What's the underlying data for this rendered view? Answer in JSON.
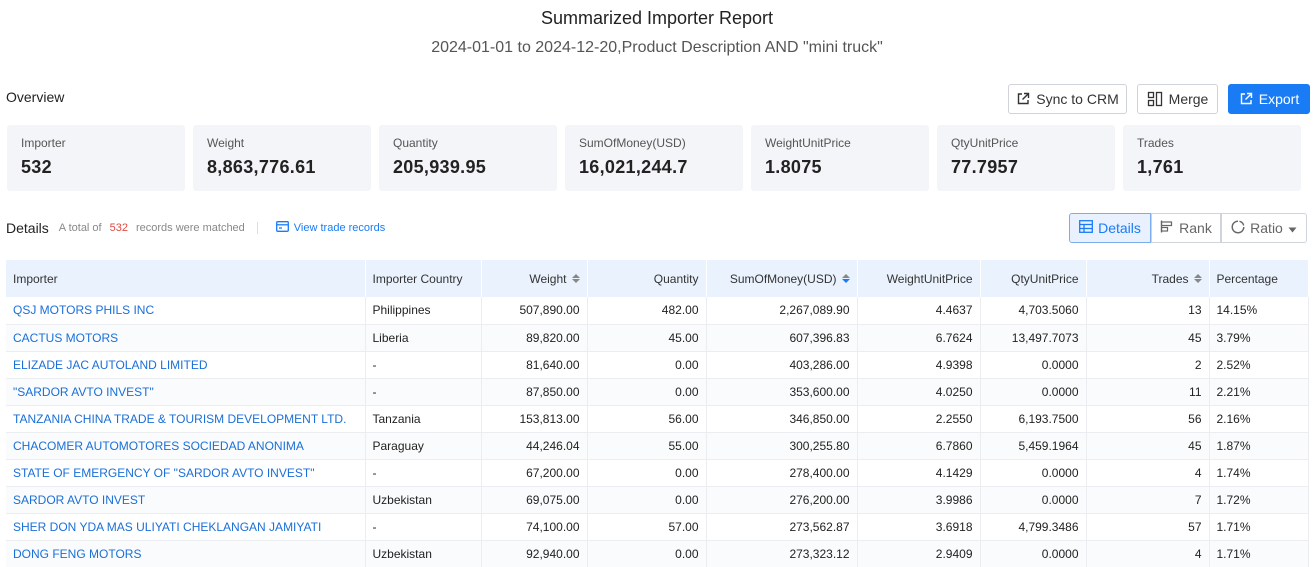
{
  "report": {
    "title": "Summarized Importer Report",
    "subtitle": "2024-01-01 to 2024-12-20,Product Description AND \"mini truck\""
  },
  "overview": {
    "label": "Overview"
  },
  "actions": {
    "sync_label": "Sync to CRM",
    "merge_label": "Merge",
    "export_label": "Export"
  },
  "stats": [
    {
      "label": "Importer",
      "value": "532"
    },
    {
      "label": "Weight",
      "value": "8,863,776.61"
    },
    {
      "label": "Quantity",
      "value": "205,939.95"
    },
    {
      "label": "SumOfMoney(USD)",
      "value": "16,021,244.7"
    },
    {
      "label": "WeightUnitPrice",
      "value": "1.8075"
    },
    {
      "label": "QtyUnitPrice",
      "value": "77.7957"
    },
    {
      "label": "Trades",
      "value": "1,761"
    }
  ],
  "details": {
    "title": "Details",
    "total_prefix": "A total of",
    "count": "532",
    "total_suffix": "records were matched",
    "view_link": "View trade records"
  },
  "view_modes": {
    "details": "Details",
    "rank": "Rank",
    "ratio": "Ratio"
  },
  "table": {
    "headers": [
      "Importer",
      "Importer Country",
      "Weight",
      "Quantity",
      "SumOfMoney(USD)",
      "WeightUnitPrice",
      "QtyUnitPrice",
      "Trades",
      "Percentage"
    ],
    "rows": [
      [
        "QSJ MOTORS PHILS INC",
        "Philippines",
        "507,890.00",
        "482.00",
        "2,267,089.90",
        "4.4637",
        "4,703.5060",
        "13",
        "14.15%"
      ],
      [
        "CACTUS MOTORS",
        "Liberia",
        "89,820.00",
        "45.00",
        "607,396.83",
        "6.7624",
        "13,497.7073",
        "45",
        "3.79%"
      ],
      [
        "ELIZADE JAC AUTOLAND LIMITED",
        "-",
        "81,640.00",
        "0.00",
        "403,286.00",
        "4.9398",
        "0.0000",
        "2",
        "2.52%"
      ],
      [
        "\"SARDOR AVTO INVEST\"",
        "-",
        "87,850.00",
        "0.00",
        "353,600.00",
        "4.0250",
        "0.0000",
        "11",
        "2.21%"
      ],
      [
        "TANZANIA CHINA TRADE & TOURISM DEVELOPMENT LTD.",
        "Tanzania",
        "153,813.00",
        "56.00",
        "346,850.00",
        "2.2550",
        "6,193.7500",
        "56",
        "2.16%"
      ],
      [
        "CHACOMER AUTOMOTORES SOCIEDAD ANONIMA",
        "Paraguay",
        "44,246.04",
        "55.00",
        "300,255.80",
        "6.7860",
        "5,459.1964",
        "45",
        "1.87%"
      ],
      [
        "STATE OF EMERGENCY OF \"SARDOR AVTO INVEST\"",
        "-",
        "67,200.00",
        "0.00",
        "278,400.00",
        "4.1429",
        "0.0000",
        "4",
        "1.74%"
      ],
      [
        "SARDOR AVTO INVEST",
        "Uzbekistan",
        "69,075.00",
        "0.00",
        "276,200.00",
        "3.9986",
        "0.0000",
        "7",
        "1.72%"
      ],
      [
        "SHER DON YDA MAS ULIYATI CHEKLANGAN JAMIYATI",
        "-",
        "74,100.00",
        "57.00",
        "273,562.87",
        "3.6918",
        "4,799.3486",
        "57",
        "1.71%"
      ],
      [
        "DONG FENG MOTORS",
        "Uzbekistan",
        "92,940.00",
        "0.00",
        "273,323.12",
        "2.9409",
        "0.0000",
        "4",
        "1.71%"
      ]
    ]
  }
}
